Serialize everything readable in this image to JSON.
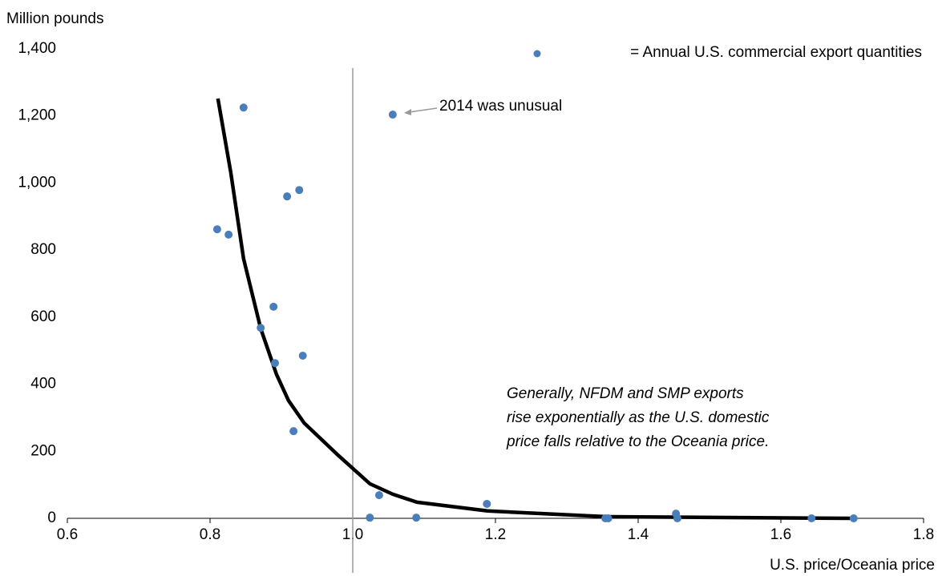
{
  "chart_data": {
    "type": "scatter",
    "y_label": "Million pounds",
    "x_label": "U.S. price/Oceania price",
    "legend_text": "= Annual U.S. commercial export quantities",
    "callout": "2014 was unusual",
    "note": [
      "Generally, NFDM and SMP exports",
      "rise exponentially as the U.S. domestic",
      "price falls relative to the Oceania price."
    ],
    "color": "#4a7ebb",
    "x": [
      0.81,
      0.826,
      0.847,
      0.908,
      0.925,
      0.889,
      0.871,
      0.891,
      0.93,
      0.917,
      1.056,
      1.037,
      1.024,
      1.089,
      1.188,
      1.354,
      1.358,
      1.453,
      1.455,
      1.643,
      1.702
    ],
    "values": [
      862,
      846,
      1225,
      960,
      979,
      631,
      568,
      463,
      485,
      260,
      1204,
      69,
      2,
      2,
      43,
      0,
      0,
      14,
      0,
      0,
      0
    ],
    "trend": {
      "color": "#000000",
      "x": [
        0.811,
        0.829,
        0.847,
        0.871,
        0.893,
        0.91,
        0.932,
        0.978,
        1.024,
        1.056,
        1.09,
        1.189,
        1.354,
        1.697
      ],
      "values": [
        1252,
        1032,
        774,
        566,
        430,
        351,
        284,
        191,
        103,
        72,
        48,
        22,
        5,
        0
      ]
    },
    "vline": 1.0,
    "xlim": [
      0.6,
      1.8
    ],
    "xticks": [
      0.6,
      0.8,
      {
        "value": 1.0,
        "label": "1.0"
      },
      1.2,
      1.4,
      1.6,
      1.8
    ],
    "ylim": [
      0,
      1400
    ],
    "yticks": [
      0,
      200,
      400,
      600,
      800,
      {
        "value": 1000,
        "label": "1,000"
      },
      {
        "value": 1200,
        "label": "1,200"
      },
      {
        "value": 1400,
        "label": "1,400"
      }
    ]
  }
}
